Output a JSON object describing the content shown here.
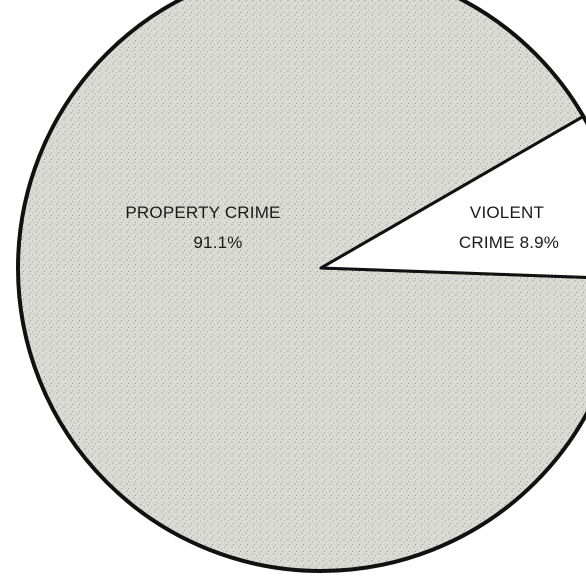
{
  "chart_data": {
    "type": "pie",
    "categories": [
      "PROPERTY CRIME",
      "VIOLENT CRIME"
    ],
    "values": [
      91.1,
      8.9
    ],
    "slices": [
      {
        "name": "PROPERTY CRIME",
        "value": 91.1,
        "label_line1": "PROPERTY CRIME",
        "label_line2": "91.1%",
        "fill": "#d9d9d4"
      },
      {
        "name": "VIOLENT CRIME",
        "value": 8.9,
        "label_line1": "VIOLENT",
        "label_line2": "CRIME 8.9%",
        "fill": "#ffffff"
      }
    ],
    "title": "",
    "legend": "none",
    "outline_color": "#111111",
    "stipple_color": "#7a7a74"
  }
}
